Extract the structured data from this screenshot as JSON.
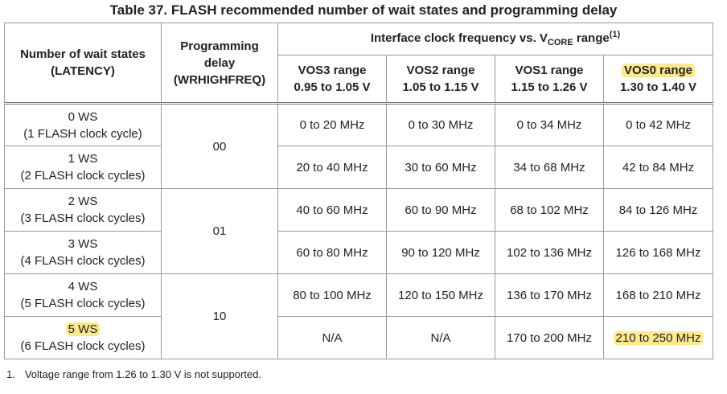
{
  "title": "Table 37. FLASH recommended number of wait states and programming delay",
  "header": {
    "latency": [
      "Number of wait states",
      "(LATENCY)"
    ],
    "delay": [
      "Programming",
      "delay",
      "(WRHIGHFREQ)"
    ],
    "group": {
      "text": "Interface clock frequency vs. V",
      "sub": "CORE",
      "tail": " range",
      "sup": "(1)"
    }
  },
  "ranges": [
    {
      "name": "VOS3 range",
      "voltage": "0.95 to 1.05 V"
    },
    {
      "name": "VOS2 range",
      "voltage": "1.05 to 1.15 V"
    },
    {
      "name": "VOS1 range",
      "voltage": "1.15 to 1.26 V"
    },
    {
      "name": "VOS0 range",
      "voltage": "1.30 to 1.40 V"
    }
  ],
  "delays": [
    "00",
    "01",
    "10"
  ],
  "rows": [
    {
      "ws": "0 WS",
      "cycles": "(1 FLASH clock cycle)",
      "freqs": [
        "0 to 20 MHz",
        "0 to 30 MHz",
        "0 to 34 MHz",
        "0 to 42 MHz"
      ]
    },
    {
      "ws": "1 WS",
      "cycles": "(2 FLASH clock cycles)",
      "freqs": [
        "20 to 40 MHz",
        "30 to 60 MHz",
        "34 to 68 MHz",
        "42 to 84 MHz"
      ]
    },
    {
      "ws": "2 WS",
      "cycles": "(3 FLASH clock cycles)",
      "freqs": [
        "40 to 60 MHz",
        "60 to 90 MHz",
        "68 to 102 MHz",
        "84 to 126 MHz"
      ]
    },
    {
      "ws": "3 WS",
      "cycles": "(4 FLASH clock cycles)",
      "freqs": [
        "60 to 80 MHz",
        "90 to 120 MHz",
        "102 to 136 MHz",
        "126 to 168 MHz"
      ]
    },
    {
      "ws": "4 WS",
      "cycles": "(5 FLASH clock cycles)",
      "freqs": [
        "80 to 100 MHz",
        "120 to 150 MHz",
        "136 to 170 MHz",
        "168 to 210 MHz"
      ]
    },
    {
      "ws": "5 WS",
      "cycles": "(6 FLASH clock cycles)",
      "freqs": [
        "N/A",
        "N/A",
        "170 to 200 MHz",
        "210 to 250 MHz"
      ]
    }
  ],
  "footnote": {
    "number": "1.",
    "text": "Voltage range from 1.26 to 1.30 V is not supported."
  }
}
